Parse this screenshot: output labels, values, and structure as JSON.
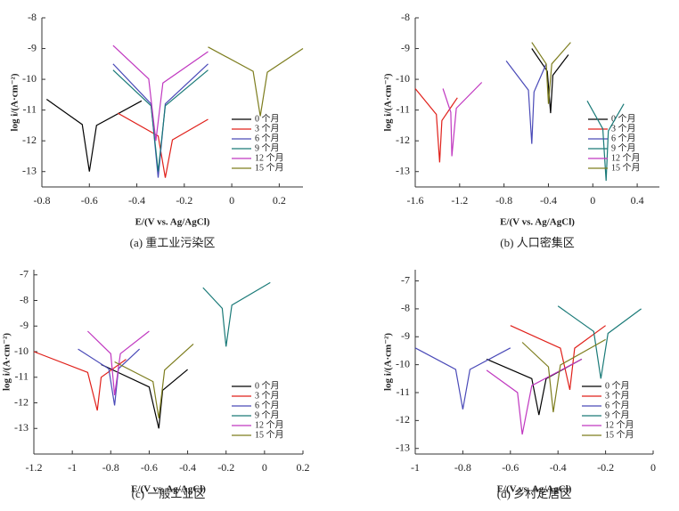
{
  "chart_data": [
    {
      "type": "line",
      "title": "(a) 重工业污染区",
      "x_label": "E/(V vs. Ag/AgCl)",
      "y_label": "log i/(A·cm⁻²)",
      "xlim": [
        -0.8,
        0.3
      ],
      "ylim": [
        -13.5,
        -8
      ],
      "xticks": [
        -0.8,
        -0.6,
        -0.4,
        -0.2,
        0,
        0.2
      ],
      "yticks": [
        -8,
        -9,
        -10,
        -11,
        -12,
        -13
      ],
      "legend": "lower right",
      "series": [
        {
          "name": "0 个月",
          "color": "#000000",
          "x": [
            -0.78,
            -0.63,
            -0.6,
            -0.57,
            -0.38
          ],
          "values": [
            -10.65,
            -11.47,
            -13,
            -11.5,
            -10.7
          ]
        },
        {
          "name": "3 个月",
          "color": "#e0201a",
          "x": [
            -0.48,
            -0.31,
            -0.28,
            -0.25,
            -0.1
          ],
          "values": [
            -11.1,
            -11.84,
            -13.2,
            -11.97,
            -11.3
          ]
        },
        {
          "name": "6 个月",
          "color": "#4a4ab8",
          "x": [
            -0.5,
            -0.34,
            -0.31,
            -0.28,
            -0.1
          ],
          "values": [
            -9.5,
            -10.8,
            -13.2,
            -10.8,
            -9.5
          ]
        },
        {
          "name": "9 个月",
          "color": "#1a7a78",
          "x": [
            -0.5,
            -0.34,
            -0.31,
            -0.28,
            -0.1
          ],
          "values": [
            -9.7,
            -10.86,
            -13,
            -10.86,
            -9.7
          ]
        },
        {
          "name": "12 个月",
          "color": "#c038c0",
          "x": [
            -0.5,
            -0.35,
            -0.32,
            -0.29,
            -0.1
          ],
          "values": [
            -8.9,
            -9.99,
            -12,
            -10.12,
            -9.1
          ]
        },
        {
          "name": "15 个月",
          "color": "#7d7d1e",
          "x": [
            -0.1,
            0.09,
            0.12,
            0.15,
            0.3
          ],
          "values": [
            -8.95,
            -9.74,
            -11.2,
            -9.77,
            -9
          ]
        }
      ]
    },
    {
      "type": "line",
      "title": "(b) 人口密集区",
      "x_label": "E/(V vs. Ag/AgCl)",
      "y_label": "log i/(A·cm⁻²)",
      "xlim": [
        -1.6,
        0.6
      ],
      "ylim": [
        -13.5,
        -8
      ],
      "xticks": [
        -1.6,
        -1.2,
        -0.8,
        -0.4,
        0,
        0.4
      ],
      "yticks": [
        -8,
        -9,
        -10,
        -11,
        -12,
        -13
      ],
      "legend": "lower right",
      "series": [
        {
          "name": "0 个月",
          "color": "#000000",
          "x": [
            -0.55,
            -0.41,
            -0.38,
            -0.36,
            -0.22
          ],
          "values": [
            -9.0,
            -9.74,
            -11.1,
            -9.87,
            -9.2
          ]
        },
        {
          "name": "3 个月",
          "color": "#e0201a",
          "x": [
            -1.6,
            -1.41,
            -1.38,
            -1.36,
            -1.22
          ],
          "values": [
            -10.3,
            -11.14,
            -12.7,
            -11.34,
            -10.6
          ]
        },
        {
          "name": "6 个月",
          "color": "#4a4ab8",
          "x": [
            -0.78,
            -0.58,
            -0.55,
            -0.53,
            -0.42
          ],
          "values": [
            -9.4,
            -10.35,
            -12.1,
            -10.41,
            -9.5
          ]
        },
        {
          "name": "9 个月",
          "color": "#1a7a78",
          "x": [
            -0.05,
            0.09,
            0.12,
            0.14,
            0.28
          ],
          "values": [
            -10.7,
            -11.61,
            -13.3,
            -11.68,
            -10.8
          ]
        },
        {
          "name": "12 个月",
          "color": "#c038c0",
          "x": [
            -1.35,
            -1.28,
            -1.27,
            -1.23,
            -1.0
          ],
          "values": [
            -10.3,
            -11.07,
            -12.5,
            -10.94,
            -10.1
          ]
        },
        {
          "name": "15 个月",
          "color": "#7d7d1e",
          "x": [
            -0.55,
            -0.42,
            -0.4,
            -0.37,
            -0.2
          ],
          "values": [
            -8.8,
            -9.5,
            -10.8,
            -9.5,
            -8.8
          ]
        }
      ]
    },
    {
      "type": "line",
      "title": "(c) 一般工业区",
      "x_label": "E/(V vs. Ag/AgCl)",
      "y_label": "log i/(A·cm⁻²)",
      "xlim": [
        -1.2,
        0.2
      ],
      "ylim": [
        -14,
        -6.8
      ],
      "xticks": [
        -1.2,
        -1.0,
        -0.8,
        -0.6,
        -0.4,
        -0.2,
        0,
        0.2
      ],
      "yticks": [
        -7,
        -8,
        -9,
        -10,
        -11,
        -12,
        -13
      ],
      "legend": "lower right",
      "series": [
        {
          "name": "0 个月",
          "color": "#000000",
          "x": [
            -0.85,
            -0.6,
            -0.55,
            -0.53,
            -0.4
          ],
          "values": [
            -10.5,
            -11.38,
            -13,
            -11.51,
            -10.7
          ]
        },
        {
          "name": "3 个月",
          "color": "#e0201a",
          "x": [
            -1.2,
            -0.92,
            -0.87,
            -0.85,
            -0.72
          ],
          "values": [
            -10.0,
            -10.81,
            -12.3,
            -11.0,
            -10.3
          ]
        },
        {
          "name": "6 个月",
          "color": "#4a4ab8",
          "x": [
            -0.97,
            -0.81,
            -0.78,
            -0.76,
            -0.65
          ],
          "values": [
            -9.9,
            -10.67,
            -12.1,
            -10.67,
            -9.9
          ]
        },
        {
          "name": "9 个月",
          "color": "#1a7a78",
          "x": [
            -0.32,
            -0.22,
            -0.2,
            -0.17,
            0.03
          ],
          "values": [
            -7.5,
            -8.31,
            -9.8,
            -8.18,
            -7.3
          ]
        },
        {
          "name": "12 个月",
          "color": "#c038c0",
          "x": [
            -0.92,
            -0.8,
            -0.78,
            -0.75,
            -0.6
          ],
          "values": [
            -9.2,
            -10.08,
            -11.7,
            -10.08,
            -9.2
          ]
        },
        {
          "name": "15 个月",
          "color": "#7d7d1e",
          "x": [
            -0.78,
            -0.58,
            -0.55,
            -0.52,
            -0.37
          ],
          "values": [
            -10.4,
            -11.17,
            -12.6,
            -10.72,
            -9.7
          ]
        }
      ]
    },
    {
      "type": "line",
      "title": "(d) 乡村定居区",
      "x_label": "E/(V vs. Ag/AgCl)",
      "y_label": "log i/(A·cm⁻²)",
      "xlim": [
        -1,
        0
      ],
      "ylim": [
        -13.2,
        -6.6
      ],
      "xticks": [
        -1.0,
        -0.8,
        -0.6,
        -0.4,
        -0.2,
        0
      ],
      "yticks": [
        -7,
        -8,
        -9,
        -10,
        -11,
        -12,
        -13
      ],
      "legend": "lower right",
      "series": [
        {
          "name": "0 个月",
          "color": "#000000",
          "x": [
            -0.7,
            -0.51,
            -0.48,
            -0.45,
            -0.3
          ],
          "values": [
            -9.8,
            -10.5,
            -11.8,
            -10.5,
            -9.8
          ]
        },
        {
          "name": "3 个月",
          "color": "#e0201a",
          "x": [
            -0.6,
            -0.39,
            -0.35,
            -0.33,
            -0.2
          ],
          "values": [
            -8.6,
            -9.41,
            -10.9,
            -9.41,
            -8.6
          ]
        },
        {
          "name": "6 个月",
          "color": "#4a4ab8",
          "x": [
            -1.0,
            -0.83,
            -0.8,
            -0.77,
            -0.6
          ],
          "values": [
            -9.4,
            -10.17,
            -11.6,
            -10.17,
            -9.4
          ]
        },
        {
          "name": "9 个月",
          "color": "#1a7a78",
          "x": [
            -0.4,
            -0.25,
            -0.22,
            -0.19,
            -0.05
          ],
          "values": [
            -7.9,
            -8.81,
            -10.5,
            -8.88,
            -8.0
          ]
        },
        {
          "name": "12 个月",
          "color": "#c038c0",
          "x": [
            -0.7,
            -0.57,
            -0.55,
            -0.51,
            -0.3
          ],
          "values": [
            -10.2,
            -11.0,
            -12.5,
            -10.75,
            -9.8
          ]
        },
        {
          "name": "15 个月",
          "color": "#7d7d1e",
          "x": [
            -0.55,
            -0.44,
            -0.42,
            -0.39,
            -0.2
          ],
          "values": [
            -9.2,
            -10.08,
            -11.7,
            -10.01,
            -9.1
          ]
        }
      ]
    }
  ]
}
